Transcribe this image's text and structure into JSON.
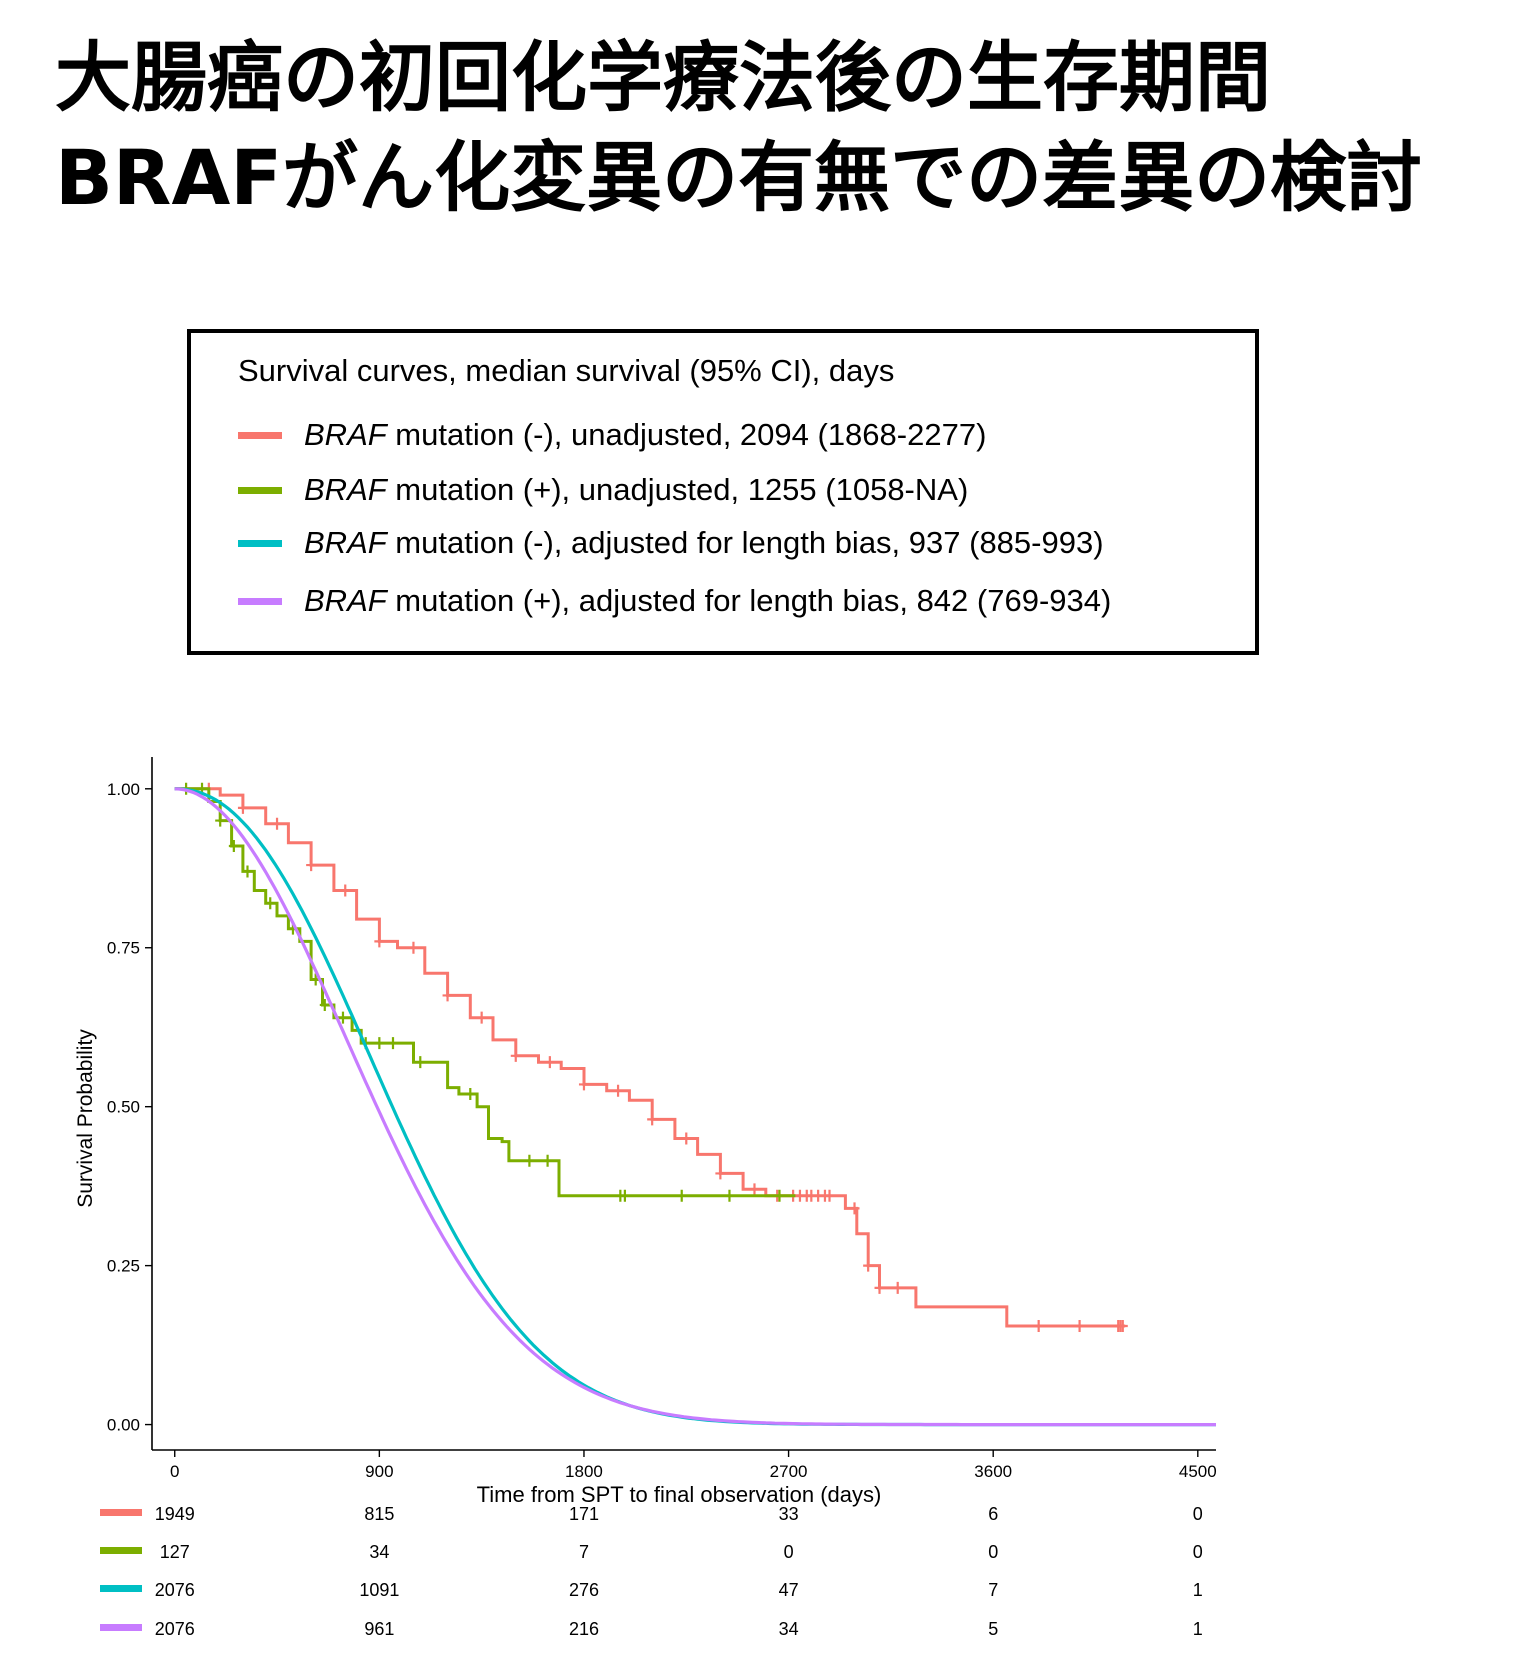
{
  "slide": {
    "title_line1": "大腸癌の初回化学療法後の生存期間",
    "title_line2": "BRAFがん化変異の有無での差異の検討"
  },
  "legend": {
    "heading": "Survival curves, median survival (95% CI), days",
    "items": [
      {
        "gene": "BRAF",
        "text": " mutation (-), unadjusted, 2094 (1868-2277)",
        "color": "#F8766D"
      },
      {
        "gene": "BRAF",
        "text": " mutation (+), unadjusted, 1255 (1058-NA)",
        "color": "#7CAE00"
      },
      {
        "gene": "BRAF",
        "text": " mutation (-), adjusted for length bias, 937 (885-993)",
        "color": "#00BFC4"
      },
      {
        "gene": "BRAF",
        "text": " mutation (+), adjusted for length bias, 842 (769-934)",
        "color": "#C77CFF"
      }
    ]
  },
  "chart_data": {
    "type": "line",
    "step": true,
    "xlabel": "Time from SPT to final observation (days)",
    "ylabel": "Survival Probability",
    "xlim": [
      -100,
      4580
    ],
    "ylim": [
      -0.04,
      1.05
    ],
    "x_ticks": [
      0,
      900,
      1800,
      2700,
      3600,
      4500
    ],
    "y_ticks": [
      0.0,
      0.25,
      0.5,
      0.75,
      1.0
    ],
    "y_tick_labels": [
      "0.00",
      "0.25",
      "0.50",
      "0.75",
      "1.00"
    ],
    "grid": false,
    "series": [
      {
        "color": "#F8766D",
        "kind": "km",
        "points": [
          [
            0,
            1.0
          ],
          [
            100,
            1.0
          ],
          [
            200,
            0.99
          ],
          [
            300,
            0.97
          ],
          [
            400,
            0.945
          ],
          [
            500,
            0.915
          ],
          [
            600,
            0.88
          ],
          [
            700,
            0.84
          ],
          [
            800,
            0.795
          ],
          [
            900,
            0.76
          ],
          [
            980,
            0.75
          ],
          [
            1100,
            0.71
          ],
          [
            1200,
            0.675
          ],
          [
            1300,
            0.64
          ],
          [
            1400,
            0.605
          ],
          [
            1500,
            0.58
          ],
          [
            1600,
            0.57
          ],
          [
            1700,
            0.56
          ],
          [
            1800,
            0.535
          ],
          [
            1900,
            0.525
          ],
          [
            2000,
            0.51
          ],
          [
            2100,
            0.48
          ],
          [
            2200,
            0.45
          ],
          [
            2300,
            0.425
          ],
          [
            2400,
            0.395
          ],
          [
            2500,
            0.37
          ],
          [
            2600,
            0.36
          ],
          [
            2700,
            0.36
          ],
          [
            2950,
            0.34
          ],
          [
            3000,
            0.3
          ],
          [
            3050,
            0.25
          ],
          [
            3100,
            0.215
          ],
          [
            3250,
            0.215
          ],
          [
            3260,
            0.185
          ],
          [
            3650,
            0.185
          ],
          [
            3660,
            0.155
          ],
          [
            4180,
            0.155
          ]
        ],
        "censor_x": [
          150,
          300,
          450,
          600,
          750,
          900,
          1050,
          1200,
          1350,
          1500,
          1650,
          1800,
          1950,
          2100,
          2250,
          2400,
          2550,
          2650,
          2720,
          2750,
          2780,
          2800,
          2830,
          2860,
          2880,
          2990,
          3050,
          3100,
          3180,
          3800,
          3980,
          4150,
          4160,
          4170
        ]
      },
      {
        "color": "#7CAE00",
        "kind": "km",
        "points": [
          [
            0,
            1.0
          ],
          [
            100,
            1.0
          ],
          [
            150,
            0.98
          ],
          [
            200,
            0.95
          ],
          [
            250,
            0.91
          ],
          [
            300,
            0.87
          ],
          [
            350,
            0.84
          ],
          [
            400,
            0.82
          ],
          [
            450,
            0.8
          ],
          [
            500,
            0.78
          ],
          [
            550,
            0.76
          ],
          [
            600,
            0.7
          ],
          [
            650,
            0.66
          ],
          [
            700,
            0.64
          ],
          [
            780,
            0.62
          ],
          [
            820,
            0.6
          ],
          [
            1000,
            0.6
          ],
          [
            1050,
            0.57
          ],
          [
            1150,
            0.57
          ],
          [
            1200,
            0.53
          ],
          [
            1250,
            0.52
          ],
          [
            1330,
            0.5
          ],
          [
            1380,
            0.45
          ],
          [
            1440,
            0.445
          ],
          [
            1470,
            0.415
          ],
          [
            1680,
            0.415
          ],
          [
            1690,
            0.36
          ],
          [
            2730,
            0.36
          ]
        ],
        "censor_x": [
          50,
          120,
          200,
          260,
          320,
          420,
          520,
          620,
          660,
          740,
          840,
          900,
          960,
          1080,
          1300,
          1560,
          1640,
          1960,
          1980,
          2230,
          2440,
          2660
        ]
      },
      {
        "color": "#00BFC4",
        "kind": "weibull",
        "scale": 1131,
        "shape": 2.2
      },
      {
        "color": "#C77CFF",
        "kind": "weibull",
        "scale": 1068,
        "shape": 2.0
      }
    ],
    "risk_table": {
      "times": [
        0,
        900,
        1800,
        2700,
        3600,
        4500
      ],
      "rows": [
        {
          "color": "#F8766D",
          "counts": [
            "1949",
            "815",
            "171",
            "33",
            "6",
            "0"
          ]
        },
        {
          "color": "#7CAE00",
          "counts": [
            "127",
            "34",
            "7",
            "0",
            "0",
            "0"
          ]
        },
        {
          "color": "#00BFC4",
          "counts": [
            "2076",
            "1091",
            "276",
            "47",
            "7",
            "1"
          ]
        },
        {
          "color": "#C77CFF",
          "counts": [
            "2076",
            "961",
            "216",
            "34",
            "5",
            "1"
          ]
        }
      ]
    }
  }
}
